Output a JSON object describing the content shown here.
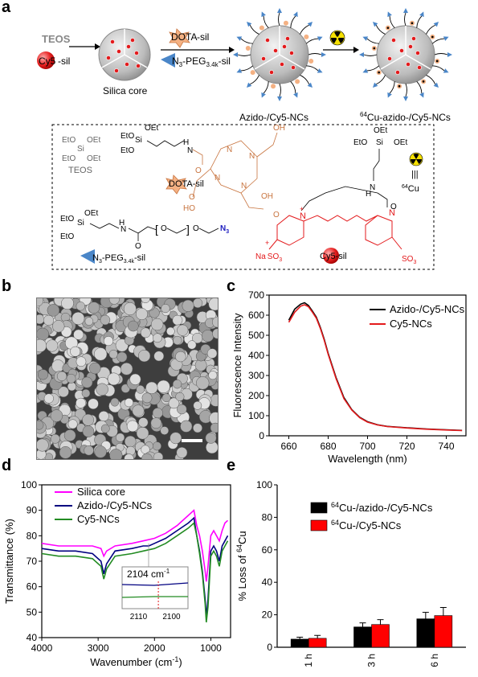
{
  "panels": {
    "a": "a",
    "b": "b",
    "c": "c",
    "d": "d",
    "e": "e"
  },
  "scheme": {
    "teos": "TEOS",
    "cy5_prefix": "Cy5",
    "cy5_suffix": "-sil",
    "silica_core": "Silica core",
    "dota_prefix": "DOTA",
    "dota_suffix": "-sil",
    "n3_peg_main": "N",
    "n3_sub": "3",
    "peg_main": "-PEG",
    "peg_sub": "3.4k",
    "peg_suffix": "-sil",
    "azido_nc": "Azido-/Cy5-NCs",
    "cu_sup": "64",
    "cu_nc": "Cu-azido-/Cy5-NCs",
    "box_teos": "TEOS",
    "box_dota": "DOTA-sil",
    "box_cy5": "Cy5-sil",
    "box_n3": "N",
    "box_peg": "-PEG",
    "box_peg_sub": "3.4k",
    "box_peg_suffix": "-sil",
    "cu_label": "Cu",
    "cu_label_sup": "64",
    "triple": "|||",
    "chem": {
      "eto": "EtO",
      "oet": "OEt",
      "si": "Si",
      "h": "H",
      "n": "N",
      "o": "O",
      "oh": "OH",
      "ho": "HO",
      "n3": "N",
      "n3sub": "3",
      "nplus": "N",
      "so3": "SO",
      "so3sub": "3",
      "na": "Na",
      "so3b": "O",
      "plus": "+"
    }
  },
  "chart_c": {
    "type": "line",
    "xlabel": "Wavelength (nm)",
    "ylabel": "Fluorescence Intensity",
    "xlim": [
      650,
      750
    ],
    "ylim": [
      0,
      700
    ],
    "xticks": [
      660,
      680,
      700,
      720,
      740
    ],
    "yticks": [
      0,
      100,
      200,
      300,
      400,
      500,
      600,
      700
    ],
    "colors": [
      "#000000",
      "#e31a1c"
    ],
    "series": [
      {
        "name": "Azido-/Cy5-NCs",
        "x": [
          660,
          663,
          666,
          668,
          670,
          672,
          674,
          676,
          678,
          680,
          684,
          688,
          692,
          696,
          700,
          705,
          710,
          720,
          730,
          740,
          748
        ],
        "y": [
          575,
          630,
          655,
          662,
          648,
          620,
          590,
          540,
          480,
          410,
          290,
          190,
          130,
          92,
          70,
          55,
          47,
          40,
          34,
          30,
          27
        ]
      },
      {
        "name": "Cy5-NCs",
        "x": [
          660,
          663,
          666,
          668,
          670,
          672,
          674,
          676,
          678,
          680,
          684,
          688,
          692,
          696,
          700,
          705,
          710,
          720,
          730,
          740,
          748
        ],
        "y": [
          565,
          615,
          645,
          652,
          642,
          615,
          585,
          535,
          475,
          405,
          285,
          185,
          128,
          90,
          68,
          54,
          46,
          39,
          33,
          29,
          26
        ]
      }
    ]
  },
  "chart_d": {
    "type": "line",
    "xlabel": "Wavenumber (cm",
    "xlabel_sup": "-1",
    "xlabel_end": ")",
    "ylabel": "Transmittance (%)",
    "xlim": [
      4000,
      650
    ],
    "ylim": [
      40,
      100
    ],
    "xticks": [
      4000,
      3000,
      2000,
      1000
    ],
    "yticks": [
      40,
      50,
      60,
      70,
      80,
      90,
      100
    ],
    "colors": [
      "#ff00ff",
      "#000080",
      "#228b22"
    ],
    "series": [
      {
        "name": "Silica core",
        "x": [
          4000,
          3700,
          3400,
          3100,
          2950,
          2900,
          2850,
          2700,
          2400,
          2200,
          2000,
          1800,
          1600,
          1400,
          1300,
          1250,
          1200,
          1150,
          1100,
          1080,
          1050,
          1000,
          950,
          900,
          850,
          800,
          750,
          700
        ],
        "y": [
          77,
          76,
          76,
          76,
          75,
          72,
          74,
          76,
          77,
          78,
          79,
          81,
          84,
          88,
          90,
          84,
          80,
          74,
          66,
          62,
          68,
          80,
          82,
          80,
          78,
          82,
          85,
          86
        ]
      },
      {
        "name": "Azido-/Cy5-NCs",
        "x": [
          4000,
          3700,
          3400,
          3100,
          2950,
          2900,
          2850,
          2700,
          2400,
          2200,
          2100,
          2000,
          1800,
          1600,
          1400,
          1300,
          1250,
          1200,
          1150,
          1100,
          1080,
          1050,
          1000,
          950,
          900,
          850,
          800,
          750,
          700
        ],
        "y": [
          75,
          74,
          74,
          73,
          70,
          65,
          69,
          74,
          75,
          76,
          76,
          77,
          79,
          82,
          85,
          87,
          80,
          74,
          66,
          55,
          48,
          55,
          74,
          76,
          74,
          70,
          76,
          78,
          80
        ]
      },
      {
        "name": "Cy5-NCs",
        "x": [
          4000,
          3700,
          3400,
          3100,
          2950,
          2900,
          2850,
          2700,
          2400,
          2200,
          2000,
          1800,
          1600,
          1400,
          1300,
          1250,
          1200,
          1150,
          1100,
          1080,
          1050,
          1000,
          950,
          900,
          850,
          800,
          750,
          700
        ],
        "y": [
          73,
          72,
          72,
          71,
          68,
          63,
          67,
          72,
          73,
          74,
          75,
          77,
          80,
          83,
          85,
          80,
          73,
          65,
          53,
          46,
          52,
          72,
          74,
          72,
          68,
          74,
          76,
          78
        ]
      }
    ],
    "inset": {
      "label": "2104 cm",
      "label_sup": "-1",
      "xticks": [
        2110,
        2100
      ],
      "xlim": [
        2115,
        2095
      ]
    }
  },
  "chart_e": {
    "type": "bar",
    "ylabel": "% Loss of ",
    "ylabel_sup": "64",
    "ylabel_end": "Cu",
    "ylim": [
      0,
      100
    ],
    "yticks": [
      0,
      20,
      40,
      60,
      80,
      100
    ],
    "categories": [
      "1 h",
      "3 h",
      "6 h"
    ],
    "colors": [
      "#000000",
      "#ff0000"
    ],
    "series": [
      {
        "name": "Cu-/azido-/Cy5-NCs",
        "name_sup": "64",
        "values": [
          5,
          12.5,
          17.5
        ],
        "errors": [
          1.2,
          2.5,
          4
        ]
      },
      {
        "name": "Cu-/Cy5-NCs",
        "name_sup": "64",
        "values": [
          5.5,
          14,
          19.5
        ],
        "errors": [
          1.8,
          3,
          5
        ]
      }
    ]
  }
}
